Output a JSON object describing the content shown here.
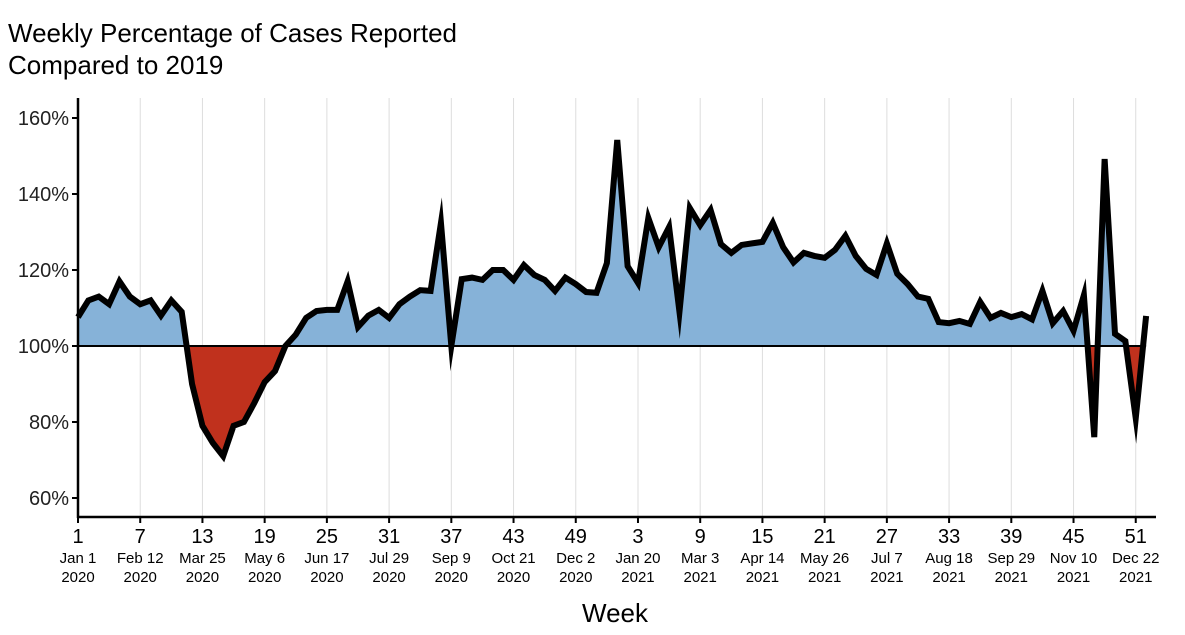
{
  "chart_data": {
    "type": "area",
    "title": "Weekly Percentage of Cases Reported\nCompared to 2019",
    "title_lines": [
      "Weekly Percentage of Cases Reported",
      "Compared to 2019"
    ],
    "xlabel": "Week",
    "ylabel": "",
    "ylim": [
      55,
      165
    ],
    "baseline": 100,
    "grid": "vertical",
    "y_ticks": [
      60,
      80,
      100,
      120,
      140,
      160
    ],
    "y_tick_labels": [
      "60%",
      "80%",
      "100%",
      "120%",
      "140%",
      "160%"
    ],
    "x_ticks": [
      {
        "week": "1",
        "date": "Jan 1",
        "year": "2020"
      },
      {
        "week": "7",
        "date": "Feb 12",
        "year": "2020"
      },
      {
        "week": "13",
        "date": "Mar 25",
        "year": "2020"
      },
      {
        "week": "19",
        "date": "May 6",
        "year": "2020"
      },
      {
        "week": "25",
        "date": "Jun 17",
        "year": "2020"
      },
      {
        "week": "31",
        "date": "Jul 29",
        "year": "2020"
      },
      {
        "week": "37",
        "date": "Sep 9",
        "year": "2020"
      },
      {
        "week": "43",
        "date": "Oct 21",
        "year": "2020"
      },
      {
        "week": "49",
        "date": "Dec 2",
        "year": "2020"
      },
      {
        "week": "3",
        "date": "Jan 20",
        "year": "2021"
      },
      {
        "week": "9",
        "date": "Mar 3",
        "year": "2021"
      },
      {
        "week": "15",
        "date": "Apr 14",
        "year": "2021"
      },
      {
        "week": "21",
        "date": "May 26",
        "year": "2021"
      },
      {
        "week": "27",
        "date": "Jul 7",
        "year": "2021"
      },
      {
        "week": "33",
        "date": "Aug 18",
        "year": "2021"
      },
      {
        "week": "39",
        "date": "Sep 29",
        "year": "2021"
      },
      {
        "week": "45",
        "date": "Nov 10",
        "year": "2021"
      },
      {
        "week": "51",
        "date": "Dec 22",
        "year": "2021"
      }
    ],
    "colors": {
      "above": "#86b2d8",
      "below": "#c0311d",
      "line": "#000000",
      "baseline": "#000000",
      "grid": "#dddddd"
    },
    "series": [
      {
        "values": [
          107.6,
          112,
          113,
          111,
          117,
          113,
          111,
          112,
          108,
          112,
          109,
          90,
          79,
          74.5,
          71,
          79,
          80,
          85,
          90.5,
          93.4,
          100,
          103,
          107.4,
          109.2,
          109.5,
          109.5,
          117,
          105,
          108,
          109.5,
          107.4,
          111,
          113,
          114.7,
          114.5,
          132.4,
          100,
          117.6,
          118,
          117.4,
          120,
          120,
          117.4,
          121.3,
          118.7,
          117.4,
          114.5,
          118,
          116.3,
          114.2,
          114,
          121.8,
          154.2,
          121,
          116.6,
          133.7,
          126,
          131.3,
          109,
          136.3,
          131.8,
          135.8,
          126.8,
          124.5,
          126.6,
          127,
          127.4,
          132.4,
          126,
          122,
          124.5,
          123.7,
          123.2,
          125.3,
          129,
          123.7,
          120.3,
          118.7,
          127,
          119,
          116.3,
          113,
          112.4,
          106.3,
          106,
          106.6,
          105.8,
          111.6,
          107.4,
          108.7,
          107.6,
          108.4,
          107,
          114.5,
          106,
          109.2,
          104,
          113.4,
          76,
          149.2,
          103.2,
          101.3,
          81,
          107.9
        ]
      }
    ]
  }
}
